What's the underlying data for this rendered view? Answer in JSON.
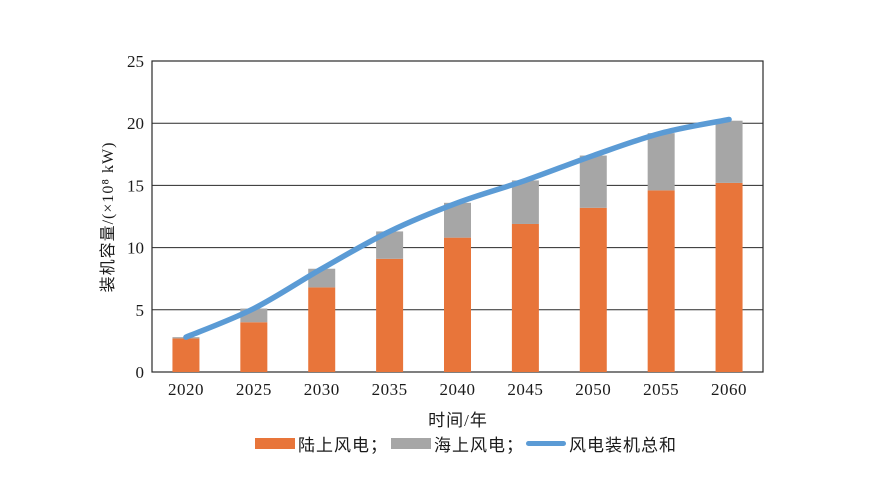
{
  "page": {
    "background": "#ffffff"
  },
  "chart_data": {
    "type": "bar",
    "subtype": "stacked-bars-with-total-line",
    "title": "",
    "xlabel": "时间/年",
    "ylabel": "装机容量/(×10⁸ kW)",
    "categories": [
      "2020",
      "2025",
      "2030",
      "2035",
      "2040",
      "2045",
      "2050",
      "2055",
      "2060"
    ],
    "series": [
      {
        "name": "陆上风电",
        "type": "bar",
        "color": "#E8753A",
        "values": [
          2.7,
          4.0,
          6.8,
          9.1,
          10.8,
          11.9,
          13.2,
          14.6,
          15.2
        ]
      },
      {
        "name": "海上风电",
        "type": "bar",
        "color": "#A6A6A6",
        "values": [
          0.1,
          1.1,
          1.5,
          2.2,
          2.8,
          3.5,
          4.2,
          4.6,
          5.0
        ]
      },
      {
        "name": "风电装机总和",
        "type": "line",
        "color": "#5B9BD5",
        "values": [
          2.8,
          5.1,
          8.3,
          11.3,
          13.6,
          15.4,
          17.4,
          19.2,
          20.3
        ]
      }
    ],
    "ylim": [
      0,
      25
    ],
    "yticks": [
      0,
      5,
      10,
      15,
      20,
      25
    ],
    "grid": true,
    "grid_color": "#2a2a2a",
    "axis_color": "#2a2a2a",
    "tick_label_color": "#1a1a1a",
    "legend_position": "bottom"
  },
  "legend": {
    "items": [
      {
        "label": "陆上风电；",
        "marker": "rect",
        "color": "#E8753A"
      },
      {
        "label": "海上风电；",
        "marker": "rect",
        "color": "#A6A6A6"
      },
      {
        "label": "风电装机总和",
        "marker": "line",
        "color": "#5B9BD5"
      }
    ]
  }
}
